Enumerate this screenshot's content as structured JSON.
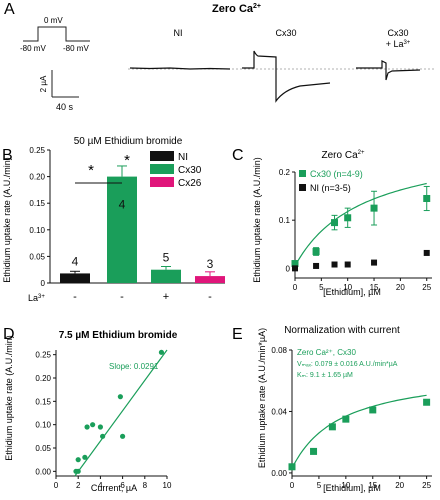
{
  "colors": {
    "green": "#1a9e5a",
    "black": "#111111",
    "magenta": "#e0157a",
    "gray": "#444444"
  },
  "panelA": {
    "letter": "A",
    "title": "Zero Ca",
    "title_sup": "2+",
    "protocol": {
      "hold_left": "-80 mV",
      "step": "0 mV",
      "hold_right": "-80 mV"
    },
    "scale": {
      "current": "2 µA",
      "time": "40 s"
    },
    "traces": [
      {
        "label": "NI",
        "sup": ""
      },
      {
        "label": "Cx30",
        "sup": ""
      },
      {
        "label": "Cx30",
        "line2": "+ La",
        "sup": "3+"
      }
    ]
  },
  "chart_data": [
    {
      "panel": "B",
      "type": "bar",
      "title": "50 µM Ethidium bromide",
      "ylabel": "Ethidium uptake rate (A.U./min)",
      "ylim": [
        0,
        0.25
      ],
      "yticks": [
        "0",
        "0.05",
        "0.10",
        "0.15",
        "0.20",
        "0.25"
      ],
      "categories": [
        "NI",
        "Cx30",
        "Cx30 + La³⁺",
        "Cx26"
      ],
      "values": [
        0.018,
        0.2,
        0.025,
        0.013
      ],
      "errors": [
        0.004,
        0.02,
        0.006,
        0.008
      ],
      "n": [
        "4",
        "4",
        "5",
        "3"
      ],
      "la_row": {
        "label": "La",
        "sup": "3+",
        "marks": [
          "-",
          "-",
          "+",
          "-"
        ]
      },
      "legend": [
        "NI",
        "Cx30",
        "Cx26"
      ],
      "significance": [
        "*",
        "*"
      ]
    },
    {
      "panel": "C",
      "type": "scatter",
      "title": "Zero Ca",
      "title_sup": "2+",
      "xlabel": "[Ethidium], µM",
      "ylabel": "Ethidium uptake rate (A.U./min)",
      "xlim": [
        0,
        26
      ],
      "ylim": [
        -0.02,
        0.2
      ],
      "xticks": [
        "0",
        "5",
        "10",
        "15",
        "20",
        "25"
      ],
      "yticks": [
        "0",
        "0.1",
        "0.2"
      ],
      "series": [
        {
          "name": "Cx30 (n=4-9)",
          "x": [
            0,
            4,
            7.5,
            10,
            15,
            25
          ],
          "y": [
            0.01,
            0.035,
            0.095,
            0.105,
            0.125,
            0.145
          ],
          "err": [
            0.005,
            0.008,
            0.015,
            0.02,
            0.035,
            0.025
          ]
        },
        {
          "name": "NI (n=3-5)",
          "x": [
            0,
            4,
            7.5,
            10,
            15,
            25
          ],
          "y": [
            0.0,
            0.005,
            0.008,
            0.008,
            0.012,
            0.032
          ],
          "err": [
            0,
            0,
            0,
            0,
            0,
            0
          ]
        }
      ]
    },
    {
      "panel": "D",
      "type": "scatter",
      "title": "7.5 µM Ethidium bromide",
      "xlabel": "Current, µA",
      "ylabel": "Ethidium uptake rate (A.U./min)",
      "xlim": [
        0,
        10
      ],
      "ylim": [
        -0.01,
        0.26
      ],
      "xticks": [
        "0",
        "2",
        "4",
        "6",
        "8",
        "10"
      ],
      "yticks": [
        "0.00",
        "0.05",
        "0.10",
        "0.15",
        "0.20",
        "0.25"
      ],
      "annotation": "Slope: 0.0291",
      "points": {
        "x": [
          1.8,
          2.0,
          2.0,
          2.6,
          2.8,
          3.3,
          4.2,
          4.0,
          5.8,
          6.0,
          9.5
        ],
        "y": [
          0.0,
          0.0,
          0.025,
          0.03,
          0.095,
          0.1,
          0.075,
          0.095,
          0.16,
          0.075,
          0.255
        ]
      }
    },
    {
      "panel": "E",
      "type": "scatter",
      "title": "Normalization with current",
      "xlabel": "[Ethidium], µM",
      "ylabel": "Ethidium uptake rate (A.U./min*µA)",
      "xlim": [
        0,
        26
      ],
      "ylim": [
        -0.002,
        0.08
      ],
      "xticks": [
        "0",
        "5",
        "10",
        "15",
        "20",
        "25"
      ],
      "yticks": [
        "0.00",
        "0.04",
        "0.08"
      ],
      "annotation": [
        "Zero Ca²⁺, Cx30",
        "Vₘₐₓ: 0.079 ± 0.016 A.U./min*µA",
        "Kₘ: 9.1 ± 1.65 µM"
      ],
      "points": {
        "x": [
          0,
          4,
          7.5,
          10,
          15,
          25
        ],
        "y": [
          0.004,
          0.014,
          0.03,
          0.035,
          0.041,
          0.046
        ]
      }
    }
  ]
}
